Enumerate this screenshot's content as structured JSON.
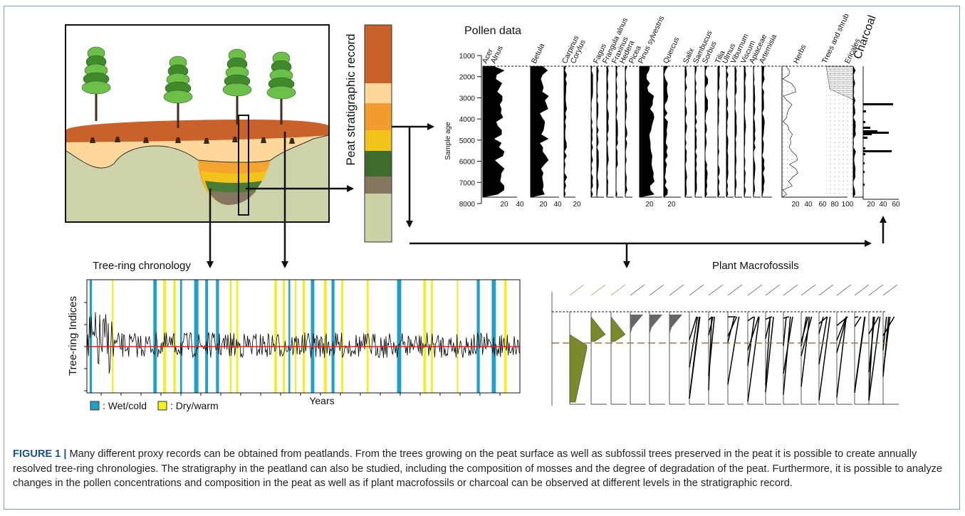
{
  "figure": {
    "peat_label": "Peat stratigraphic record",
    "pollen": {
      "title": "Pollen data",
      "y_label": "Sample age",
      "y_ticks": [
        "1000",
        "2000",
        "3000",
        "4000",
        "5000",
        "6000",
        "7000",
        "8000"
      ],
      "taxa": [
        "Acer",
        "Alnus",
        "Betula",
        "Carpinus",
        "Corylus",
        "Fagus",
        "Frangula alnus",
        "Fraxinus",
        "Hedera",
        "Picea",
        "Pinus sylvestris",
        "Quercus",
        "Salix",
        "Sambucus",
        "Sorbus",
        "Tilia",
        "Ulmus",
        "Viburnum",
        "Viscum",
        "Apiaceae",
        "Artemisia",
        "Herbs",
        "Trees and shrub",
        "Ericales"
      ],
      "x_ticks": [
        "20",
        "40",
        "20",
        "40",
        "20",
        "20",
        "20",
        "20",
        "40",
        "60",
        "80",
        "100"
      ],
      "charcoal_title": "Charcoal",
      "charcoal_ticks": [
        "20",
        "40",
        "60"
      ]
    },
    "tree_ring": {
      "title": "Tree-ring chronology",
      "y_label": "Tree-ring Indices",
      "x_label": "Years",
      "legend": [
        ": Wet/cold",
        ": Dry/warm"
      ]
    },
    "macrofossils": {
      "title": "Plant Macrofossils"
    }
  },
  "caption": {
    "label": "FIGURE 1 |",
    "text": "Many different proxy records can be obtained from peatlands. From the trees growing on the peat surface as well as subfossil trees preserved in the peat it is possible to create annually resolved tree-ring chronologies. The stratigraphy in the peatland can also be studied, including the composition of mosses and the degree of degradation of the peat. Furthermore, it is possible to analyze changes in the pollen concentrations and composition in the peat as well as if plant macrofossils or charcoal can be observed at different levels in the stratigraphic record."
  }
}
